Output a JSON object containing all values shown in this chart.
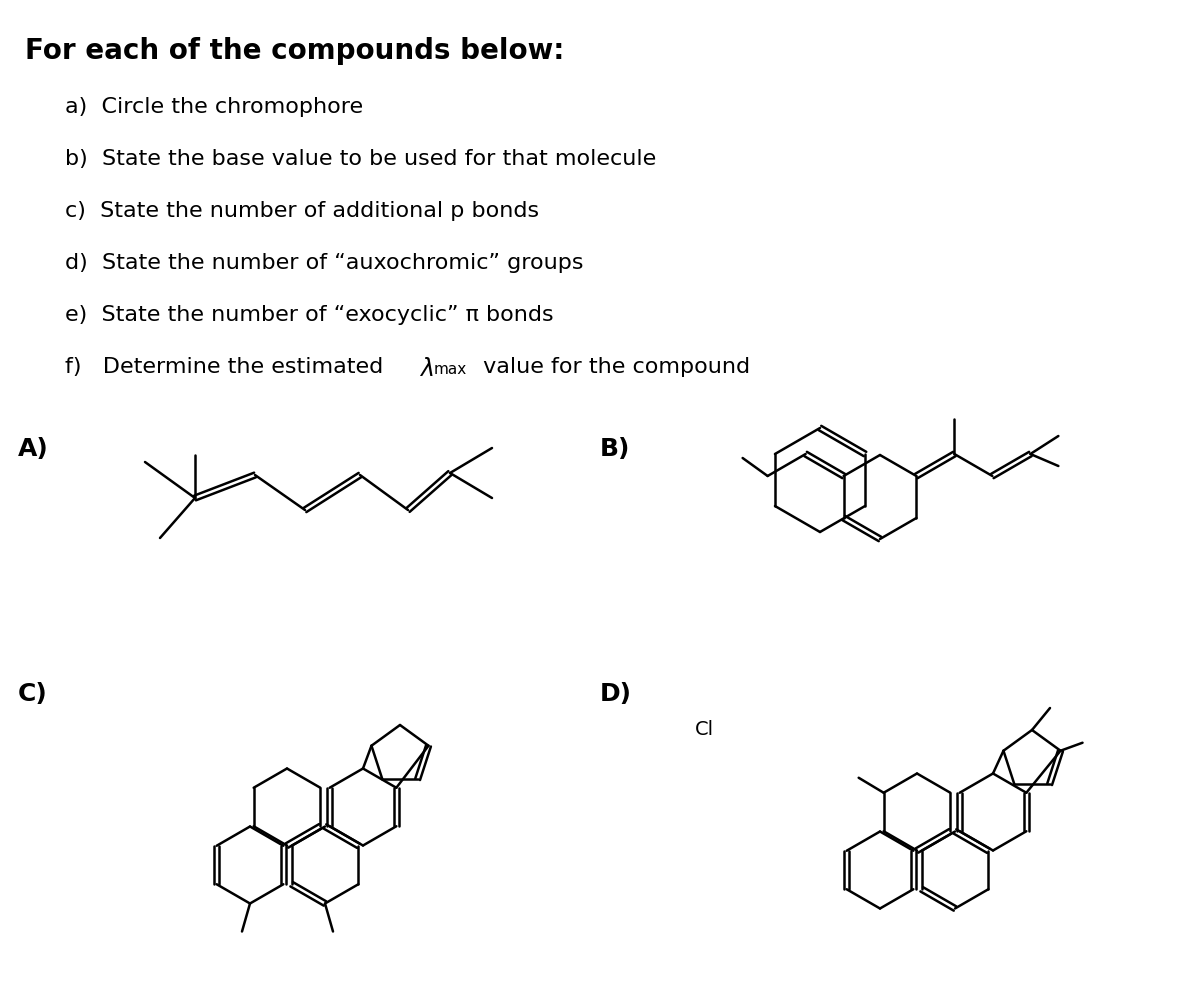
{
  "title": "For each of the compounds below:",
  "items": [
    "a)  Circle the chromophore",
    "b)  State the base value to be used for that molecule",
    "c)  State the number of additional p bonds",
    "d)  State the number of “auxochromic” groups",
    "e)  State the number of “exocyclic” π bonds",
    "f)   Determine the estimated λₘₐₓ value for the compound"
  ],
  "labels": [
    "A)",
    "B)",
    "C)",
    "D)"
  ],
  "bg_color": "#ffffff",
  "text_color": "#000000",
  "line_color": "#000000",
  "line_width": 1.8
}
